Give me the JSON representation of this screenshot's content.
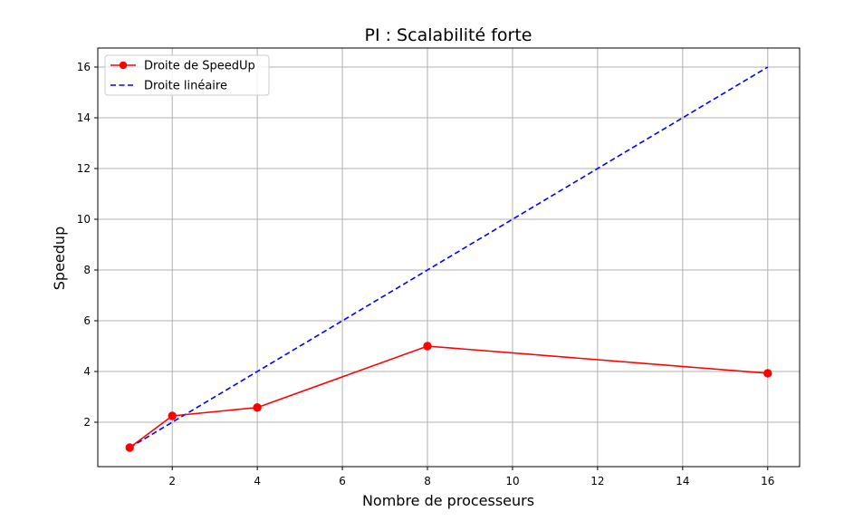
{
  "chart_data": {
    "type": "line",
    "title": "PI : Scalabilité forte",
    "xlabel": "Nombre de processeurs",
    "ylabel": "Speedup",
    "xlim": [
      0.25,
      16.75
    ],
    "ylim": [
      0.25,
      16.75
    ],
    "xticks": [
      2,
      4,
      6,
      8,
      10,
      12,
      14,
      16
    ],
    "yticks": [
      2,
      4,
      6,
      8,
      10,
      12,
      14,
      16
    ],
    "grid": true,
    "legend_position": "top-left",
    "series": [
      {
        "name": "Droite de SpeedUp",
        "color": "#ff0000",
        "style": "solid",
        "marker": "circle",
        "x": [
          1,
          2,
          4,
          8,
          16
        ],
        "y": [
          1.0,
          2.25,
          2.58,
          5.0,
          3.93
        ]
      },
      {
        "name": "Droite linéaire",
        "color": "#0000ff",
        "style": "dashed",
        "marker": "none",
        "x": [
          1,
          2,
          4,
          8,
          16
        ],
        "y": [
          1,
          2,
          4,
          8,
          16
        ]
      }
    ]
  }
}
